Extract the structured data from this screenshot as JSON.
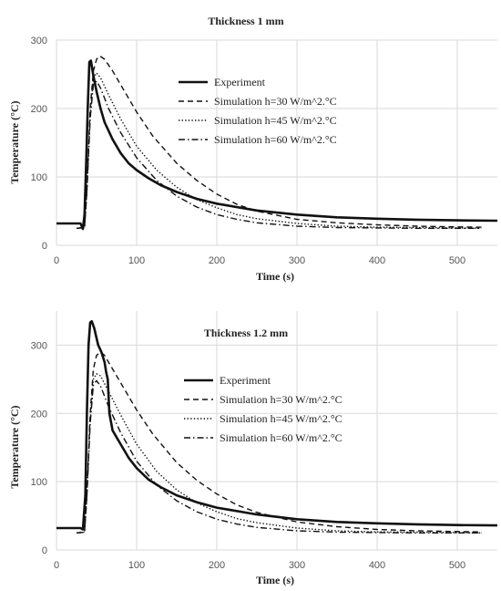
{
  "chart_data": [
    {
      "type": "line",
      "title": "Thickness 1 mm",
      "xlabel": "Time (s)",
      "ylabel": "Temperature (°C)",
      "xlim": [
        0,
        550
      ],
      "ylim": [
        0,
        300
      ],
      "xticks": [
        0,
        100,
        200,
        300,
        400,
        500
      ],
      "yticks": [
        0,
        100,
        200,
        300
      ],
      "grid": true,
      "legend_position": "center",
      "series": [
        {
          "name": "Experiment",
          "style": "solid-thick",
          "points": [
            [
              0,
              32
            ],
            [
              30,
              32
            ],
            [
              33,
              24
            ],
            [
              35,
              45
            ],
            [
              37,
              120
            ],
            [
              39,
              200
            ],
            [
              41,
              268
            ],
            [
              43,
              270
            ],
            [
              46,
              248
            ],
            [
              50,
              225
            ],
            [
              55,
              200
            ],
            [
              60,
              180
            ],
            [
              70,
              155
            ],
            [
              80,
              135
            ],
            [
              90,
              120
            ],
            [
              100,
              110
            ],
            [
              115,
              98
            ],
            [
              130,
              88
            ],
            [
              150,
              78
            ],
            [
              175,
              68
            ],
            [
              200,
              61
            ],
            [
              250,
              51
            ],
            [
              300,
              45
            ],
            [
              350,
              41
            ],
            [
              400,
              39
            ],
            [
              450,
              37.5
            ],
            [
              500,
              36.5
            ],
            [
              550,
              36
            ]
          ]
        },
        {
          "name": "Simulation h=30 W/m^2.°C",
          "style": "dashed",
          "points": [
            [
              25,
              25
            ],
            [
              35,
              26
            ],
            [
              38,
              80
            ],
            [
              42,
              200
            ],
            [
              46,
              255
            ],
            [
              50,
              272
            ],
            [
              54,
              277
            ],
            [
              60,
              272
            ],
            [
              70,
              255
            ],
            [
              85,
              225
            ],
            [
              100,
              195
            ],
            [
              120,
              160
            ],
            [
              150,
              120
            ],
            [
              175,
              95
            ],
            [
              200,
              75
            ],
            [
              225,
              60
            ],
            [
              250,
              50
            ],
            [
              300,
              38
            ],
            [
              350,
              33
            ],
            [
              400,
              30
            ],
            [
              450,
              28
            ],
            [
              500,
              27
            ],
            [
              530,
              26.5
            ]
          ]
        },
        {
          "name": "Simulation h=45 W/m^2.°C",
          "style": "dotted",
          "points": [
            [
              25,
              25
            ],
            [
              35,
              26
            ],
            [
              38,
              80
            ],
            [
              42,
              190
            ],
            [
              46,
              245
            ],
            [
              50,
              252
            ],
            [
              55,
              245
            ],
            [
              65,
              220
            ],
            [
              80,
              185
            ],
            [
              100,
              145
            ],
            [
              125,
              110
            ],
            [
              150,
              85
            ],
            [
              175,
              67
            ],
            [
              200,
              55
            ],
            [
              225,
              45
            ],
            [
              250,
              39
            ],
            [
              300,
              32
            ],
            [
              350,
              28
            ],
            [
              400,
              26.5
            ],
            [
              450,
              26
            ],
            [
              500,
              25.5
            ],
            [
              530,
              25
            ]
          ]
        },
        {
          "name": "Simulation h=60 W/m^2.°C",
          "style": "dashdot",
          "points": [
            [
              25,
              25
            ],
            [
              35,
              26
            ],
            [
              38,
              80
            ],
            [
              42,
              185
            ],
            [
              46,
              235
            ],
            [
              50,
              240
            ],
            [
              55,
              230
            ],
            [
              65,
              200
            ],
            [
              80,
              165
            ],
            [
              100,
              128
            ],
            [
              125,
              95
            ],
            [
              150,
              72
            ],
            [
              175,
              56
            ],
            [
              200,
              45
            ],
            [
              225,
              38
            ],
            [
              250,
              33
            ],
            [
              300,
              28
            ],
            [
              350,
              26
            ],
            [
              400,
              25.5
            ],
            [
              450,
              25
            ],
            [
              530,
              25
            ]
          ]
        }
      ]
    },
    {
      "type": "line",
      "title": "Thickness 1.2 mm",
      "xlabel": "Time (s)",
      "ylabel": "Temperature (°C)",
      "xlim": [
        0,
        550
      ],
      "ylim": [
        0,
        350
      ],
      "xticks": [
        0,
        100,
        200,
        300,
        400,
        500
      ],
      "yticks": [
        0,
        100,
        200,
        300
      ],
      "grid": true,
      "legend_position": "center",
      "series": [
        {
          "name": "Experiment",
          "style": "solid-thick",
          "points": [
            [
              0,
              32
            ],
            [
              30,
              32
            ],
            [
              33,
              30
            ],
            [
              36,
              80
            ],
            [
              38,
              200
            ],
            [
              40,
              300
            ],
            [
              42,
              333
            ],
            [
              44,
              335
            ],
            [
              47,
              325
            ],
            [
              52,
              300
            ],
            [
              56,
              290
            ],
            [
              60,
              275
            ],
            [
              62,
              260
            ],
            [
              64,
              250
            ],
            [
              66,
              200
            ],
            [
              70,
              175
            ],
            [
              80,
              155
            ],
            [
              90,
              135
            ],
            [
              100,
              120
            ],
            [
              115,
              103
            ],
            [
              130,
              92
            ],
            [
              150,
              80
            ],
            [
              175,
              70
            ],
            [
              200,
              62
            ],
            [
              250,
              52
            ],
            [
              300,
              45
            ],
            [
              350,
              41
            ],
            [
              400,
              39
            ],
            [
              450,
              37.5
            ],
            [
              500,
              36.5
            ],
            [
              550,
              36
            ]
          ]
        },
        {
          "name": "Simulation h=30 W/m^2.°C",
          "style": "dashed",
          "points": [
            [
              25,
              25
            ],
            [
              35,
              26
            ],
            [
              38,
              80
            ],
            [
              42,
              200
            ],
            [
              46,
              265
            ],
            [
              50,
              285
            ],
            [
              55,
              290
            ],
            [
              60,
              285
            ],
            [
              70,
              265
            ],
            [
              85,
              235
            ],
            [
              100,
              205
            ],
            [
              120,
              170
            ],
            [
              150,
              128
            ],
            [
              175,
              102
            ],
            [
              200,
              82
            ],
            [
              225,
              66
            ],
            [
              250,
              55
            ],
            [
              300,
              41
            ],
            [
              350,
              34
            ],
            [
              400,
              30
            ],
            [
              450,
              28
            ],
            [
              500,
              27
            ],
            [
              530,
              26.5
            ]
          ]
        },
        {
          "name": "Simulation h=45 W/m^2.°C",
          "style": "dotted",
          "points": [
            [
              25,
              25
            ],
            [
              35,
              26
            ],
            [
              38,
              80
            ],
            [
              42,
              190
            ],
            [
              46,
              250
            ],
            [
              50,
              258
            ],
            [
              55,
              255
            ],
            [
              65,
              232
            ],
            [
              80,
              198
            ],
            [
              100,
              155
            ],
            [
              125,
              115
            ],
            [
              150,
              88
            ],
            [
              175,
              69
            ],
            [
              200,
              56
            ],
            [
              225,
              46
            ],
            [
              250,
              40
            ],
            [
              300,
              32
            ],
            [
              350,
              28
            ],
            [
              400,
              26.5
            ],
            [
              450,
              26
            ],
            [
              500,
              25.5
            ],
            [
              530,
              25
            ]
          ]
        },
        {
          "name": "Simulation h=60 W/m^2.°C",
          "style": "dashdot",
          "points": [
            [
              25,
              25
            ],
            [
              35,
              26
            ],
            [
              38,
              80
            ],
            [
              42,
              185
            ],
            [
              46,
              242
            ],
            [
              50,
              248
            ],
            [
              55,
              240
            ],
            [
              65,
              210
            ],
            [
              80,
              172
            ],
            [
              100,
              130
            ],
            [
              125,
              95
            ],
            [
              150,
              72
            ],
            [
              175,
              56
            ],
            [
              200,
              45
            ],
            [
              225,
              38
            ],
            [
              250,
              33
            ],
            [
              300,
              28
            ],
            [
              350,
              26
            ],
            [
              400,
              25.5
            ],
            [
              450,
              25
            ],
            [
              530,
              25
            ]
          ]
        }
      ]
    }
  ]
}
